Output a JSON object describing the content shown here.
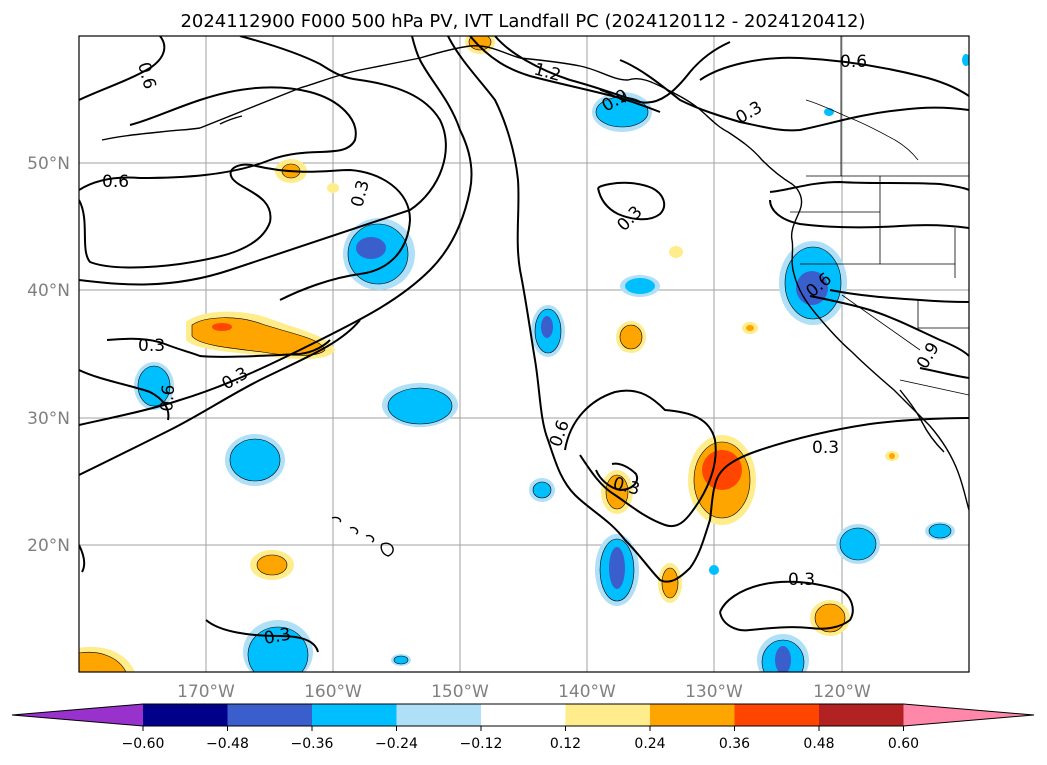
{
  "title": "2024112900 F000 500 hPa PV, IVT Landfall PC (2024120112 - 2024120412)",
  "lon_ticks": [
    "170°W",
    "160°W",
    "150°W",
    "140°W",
    "130°W",
    "120°W"
  ],
  "lat_ticks": [
    "50°N",
    "40°N",
    "30°N",
    "20°N"
  ],
  "colorbar": {
    "tick_labels": [
      "−0.60",
      "−0.48",
      "−0.36",
      "−0.24",
      "−0.12",
      "0.12",
      "0.24",
      "0.36",
      "0.48",
      "0.60"
    ],
    "colors": [
      "#9932cc",
      "#00008b",
      "#3a5fcd",
      "#00bfff",
      "#afe0f7",
      "#ffffff",
      "#ffec8b",
      "#ffa500",
      "#ff4500",
      "#b22222",
      "#ff88aa"
    ]
  },
  "contour_labels": [
    "0.6",
    "1.2",
    "0.9",
    "0.3",
    "0.6",
    "0.6",
    "0.3",
    "0.3",
    "0.6",
    "0.3",
    "0.3",
    "0.6",
    "0.6",
    "0.9",
    "0.3",
    "0.3",
    "0.3"
  ],
  "chart_data": {
    "type": "heatmap",
    "title": "2024112900 F000 500 hPa PV, IVT Landfall PC (2024120112 - 2024120412)",
    "field_shaded": "IVT Landfall PC",
    "field_contoured": "500 hPa PV",
    "contour_levels": [
      0.3,
      0.6,
      0.9,
      1.2
    ],
    "lon_range": [
      -180,
      -110
    ],
    "lat_range": [
      10,
      60
    ],
    "shading_bounds": [
      -0.6,
      -0.48,
      -0.36,
      -0.24,
      -0.12,
      0.12,
      0.24,
      0.36,
      0.48,
      0.6
    ],
    "grid": true,
    "colorbar": "bottom"
  }
}
